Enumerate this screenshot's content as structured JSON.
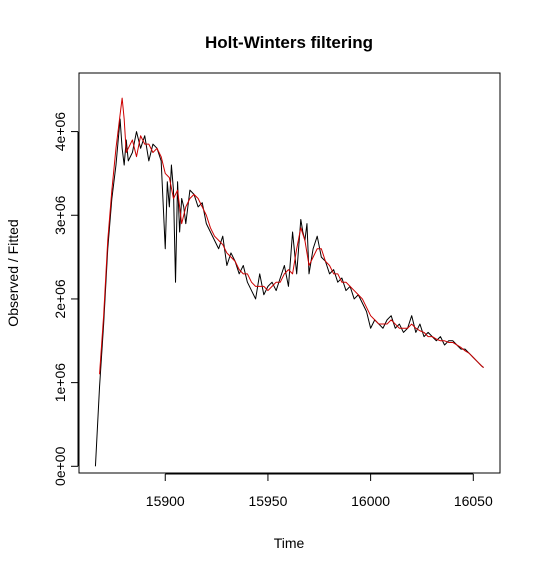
{
  "chart_data": {
    "type": "line",
    "title": "Holt-Winters filtering",
    "xlabel": "Time",
    "ylabel": "Observed / Fitted",
    "xlim": [
      15858,
      16063
    ],
    "ylim": [
      -80000,
      4700000
    ],
    "x_ticks": [
      15900,
      15950,
      16000,
      16050
    ],
    "x_tick_labels": [
      "15900",
      "15950",
      "16000",
      "16050"
    ],
    "y_ticks": [
      0,
      1000000,
      2000000,
      3000000,
      4000000
    ],
    "y_tick_labels": [
      "0e+00",
      "1e+06",
      "2e+06",
      "3e+06",
      "4e+06"
    ],
    "grid": false,
    "series": [
      {
        "color": "#000000",
        "x": [
          15866,
          15868,
          15870,
          15872,
          15874,
          15876,
          15878,
          15879,
          15880,
          15881,
          15882,
          15884,
          15886,
          15888,
          15890,
          15892,
          15894,
          15896,
          15898,
          15900,
          15901,
          15902,
          15903,
          15904,
          15905,
          15906,
          15907,
          15908,
          15909,
          15910,
          15912,
          15914,
          15916,
          15918,
          15920,
          15922,
          15924,
          15926,
          15928,
          15930,
          15932,
          15934,
          15936,
          15938,
          15940,
          15942,
          15944,
          15946,
          15948,
          15950,
          15952,
          15954,
          15956,
          15958,
          15960,
          15962,
          15964,
          15966,
          15967,
          15968,
          15969,
          15970,
          15972,
          15974,
          15976,
          15978,
          15980,
          15982,
          15984,
          15986,
          15988,
          15990,
          15992,
          15994,
          15996,
          15998,
          16000,
          16002,
          16004,
          16006,
          16008,
          16010,
          16012,
          16014,
          16016,
          16018,
          16020,
          16022,
          16024,
          16026,
          16028,
          16030,
          16032,
          16034,
          16036,
          16038,
          16040,
          16042,
          16044,
          16046,
          16048,
          16050,
          16052,
          16054,
          16055
        ],
        "values": [
          0,
          950000,
          1700000,
          2600000,
          3200000,
          3600000,
          4150000,
          3800000,
          3600000,
          3900000,
          3650000,
          3750000,
          4000000,
          3800000,
          3950000,
          3650000,
          3850000,
          3800000,
          3650000,
          2600000,
          3400000,
          3100000,
          3600000,
          3300000,
          2200000,
          3400000,
          2800000,
          3200000,
          3100000,
          2900000,
          3300000,
          3250000,
          3100000,
          3150000,
          2900000,
          2800000,
          2700000,
          2600000,
          2750000,
          2400000,
          2550000,
          2450000,
          2300000,
          2400000,
          2200000,
          2100000,
          2000000,
          2300000,
          2050000,
          2150000,
          2200000,
          2100000,
          2250000,
          2400000,
          2150000,
          2800000,
          2300000,
          2950000,
          2800000,
          2700000,
          2900000,
          2300000,
          2600000,
          2750000,
          2500000,
          2450000,
          2300000,
          2350000,
          2200000,
          2250000,
          2100000,
          2150000,
          2000000,
          2050000,
          1950000,
          1850000,
          1650000,
          1750000,
          1700000,
          1650000,
          1750000,
          1800000,
          1650000,
          1700000,
          1600000,
          1650000,
          1800000,
          1600000,
          1700000,
          1550000,
          1600000,
          1550000,
          1500000,
          1550000,
          1450000,
          1500000,
          1500000,
          1450000,
          1400000,
          1400000,
          1350000,
          1300000,
          1250000,
          1200000,
          1180000
        ]
      },
      {
        "color": "#cc0000",
        "x": [
          15868,
          15870,
          15872,
          15874,
          15876,
          15878,
          15879,
          15880,
          15881,
          15882,
          15884,
          15886,
          15888,
          15890,
          15892,
          15894,
          15896,
          15898,
          15900,
          15902,
          15904,
          15906,
          15908,
          15910,
          15912,
          15914,
          15916,
          15918,
          15920,
          15922,
          15924,
          15926,
          15928,
          15930,
          15932,
          15934,
          15936,
          15938,
          15940,
          15942,
          15944,
          15946,
          15948,
          15950,
          15952,
          15954,
          15956,
          15958,
          15960,
          15962,
          15964,
          15966,
          15968,
          15970,
          15972,
          15974,
          15976,
          15978,
          15980,
          15982,
          15984,
          15986,
          15988,
          15990,
          15992,
          15994,
          15996,
          15998,
          16000,
          16002,
          16004,
          16006,
          16008,
          16010,
          16012,
          16014,
          16016,
          16018,
          16020,
          16022,
          16024,
          16026,
          16028,
          16030,
          16032,
          16034,
          16036,
          16038,
          16040,
          16042,
          16044,
          16046,
          16048,
          16050,
          16052,
          16054,
          16055
        ],
        "values": [
          1100000,
          1800000,
          2700000,
          3300000,
          3800000,
          4200000,
          4400000,
          4150000,
          3750000,
          3800000,
          3900000,
          3700000,
          3950000,
          3850000,
          3850000,
          3750000,
          3800000,
          3700000,
          3500000,
          3450000,
          3200000,
          3300000,
          2900000,
          3100000,
          3200000,
          3250000,
          3200000,
          3100000,
          3000000,
          2850000,
          2750000,
          2700000,
          2650000,
          2550000,
          2500000,
          2450000,
          2350000,
          2300000,
          2300000,
          2200000,
          2150000,
          2150000,
          2150000,
          2100000,
          2150000,
          2200000,
          2200000,
          2300000,
          2350000,
          2300000,
          2600000,
          2850000,
          2700000,
          2400000,
          2500000,
          2600000,
          2600000,
          2450000,
          2400000,
          2300000,
          2300000,
          2200000,
          2200000,
          2150000,
          2100000,
          2050000,
          2000000,
          1900000,
          1800000,
          1750000,
          1700000,
          1700000,
          1700000,
          1750000,
          1700000,
          1650000,
          1650000,
          1650000,
          1700000,
          1650000,
          1620000,
          1600000,
          1550000,
          1550000,
          1520000,
          1500000,
          1500000,
          1480000,
          1480000,
          1450000,
          1420000,
          1380000,
          1350000,
          1300000,
          1250000,
          1200000,
          1180000
        ]
      }
    ]
  }
}
